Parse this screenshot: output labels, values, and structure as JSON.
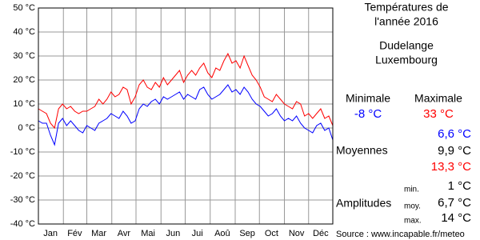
{
  "chart_data": {
    "type": "line",
    "ylim": [
      -40,
      50
    ],
    "yticks": [
      {
        "value": 50,
        "label": "50 °C"
      },
      {
        "value": 40,
        "label": "40 °C"
      },
      {
        "value": 30,
        "label": "30 °C"
      },
      {
        "value": 20,
        "label": "20 °C"
      },
      {
        "value": 10,
        "label": "10 °C"
      },
      {
        "value": 0,
        "label": "0 °C"
      },
      {
        "value": -10,
        "label": "-10 °C"
      },
      {
        "value": -20,
        "label": "-20 °C"
      },
      {
        "value": -30,
        "label": "-30 °C"
      },
      {
        "value": -40,
        "label": "-40 °C"
      }
    ],
    "xlim": [
      1,
      366
    ],
    "xticks": [
      {
        "value": 16,
        "label": "Jan"
      },
      {
        "value": 46,
        "label": "Fév"
      },
      {
        "value": 76,
        "label": "Mar"
      },
      {
        "value": 107,
        "label": "Avr"
      },
      {
        "value": 137,
        "label": "Mai"
      },
      {
        "value": 168,
        "label": "Jun"
      },
      {
        "value": 198,
        "label": "Jui"
      },
      {
        "value": 229,
        "label": "Aoû"
      },
      {
        "value": 260,
        "label": "Sep"
      },
      {
        "value": 290,
        "label": "Oct"
      },
      {
        "value": 321,
        "label": "Nov"
      },
      {
        "value": 351,
        "label": "Déc"
      }
    ],
    "xgrid": [
      32,
      61,
      92,
      122,
      153,
      183,
      214,
      245,
      275,
      306,
      336
    ],
    "grid": true,
    "x": [
      1,
      6,
      11,
      16,
      21,
      26,
      31,
      36,
      41,
      46,
      51,
      56,
      61,
      66,
      71,
      76,
      81,
      86,
      91,
      96,
      101,
      106,
      111,
      116,
      121,
      126,
      131,
      136,
      141,
      146,
      151,
      156,
      161,
      166,
      171,
      176,
      181,
      186,
      191,
      196,
      201,
      206,
      211,
      216,
      221,
      226,
      231,
      236,
      241,
      246,
      251,
      256,
      261,
      266,
      271,
      276,
      281,
      286,
      291,
      296,
      301,
      306,
      311,
      316,
      321,
      326,
      331,
      336,
      341,
      346,
      351,
      356,
      361,
      366
    ],
    "series": [
      {
        "color": "#ff0000",
        "values": [
          8,
          7,
          6,
          2,
          0,
          8,
          10,
          8,
          9,
          7,
          6,
          7,
          7,
          8,
          9,
          12,
          10,
          12,
          15,
          13,
          14,
          17,
          16,
          10,
          13,
          18,
          20,
          17,
          16,
          19,
          17,
          21,
          18,
          20,
          22,
          24,
          19,
          22,
          24,
          22,
          25,
          27,
          23,
          21,
          25,
          24,
          28,
          31,
          27,
          28,
          25,
          30,
          26,
          22,
          20,
          17,
          13,
          12,
          11,
          14,
          12,
          10,
          9,
          8,
          11,
          10,
          5,
          6,
          4,
          6,
          8,
          4,
          5,
          1
        ]
      },
      {
        "color": "#0000ff",
        "values": [
          3,
          2,
          2,
          -3,
          -7,
          2,
          4,
          1,
          3,
          1,
          -1,
          -2,
          1,
          0,
          -1,
          2,
          3,
          4,
          6,
          5,
          4,
          7,
          5,
          2,
          3,
          8,
          10,
          9,
          11,
          12,
          10,
          13,
          12,
          13,
          14,
          15,
          12,
          14,
          13,
          12,
          16,
          17,
          14,
          12,
          13,
          14,
          16,
          18,
          15,
          16,
          14,
          17,
          15,
          12,
          10,
          9,
          7,
          5,
          6,
          8,
          5,
          3,
          4,
          3,
          5,
          2,
          0,
          -1,
          -2,
          1,
          2,
          -1,
          0,
          -5
        ]
      }
    ]
  },
  "panel": {
    "title_line1": "Températures de",
    "title_line2": "l'année 2016",
    "city": "Dudelange",
    "country": "Luxembourg",
    "min_header": "Minimale",
    "max_header": "Maximale",
    "min_value": "-8 °C",
    "max_value": "33 °C",
    "avg_label": "Moyennes",
    "avg_min": "6,6 °C",
    "avg_mean": "9,9 °C",
    "avg_max": "13,3 °C",
    "amp_label": "Amplitudes",
    "amp_min_label": "min.",
    "amp_min": "1 °C",
    "amp_avg_label": "moy.",
    "amp_avg": "6,7 °C",
    "amp_max_label": "max.",
    "amp_max": "14 °C",
    "source": "Source : www.incapable.fr/meteo"
  }
}
